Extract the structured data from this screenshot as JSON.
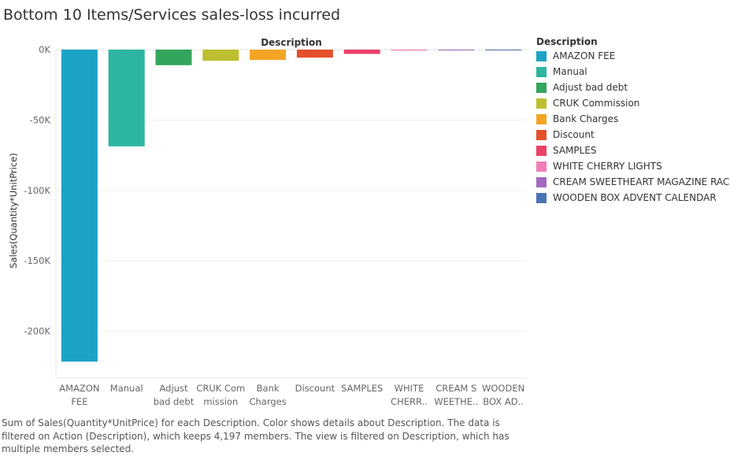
{
  "title": "Bottom 10 Items/Services sales-loss incurred",
  "caption": "Sum of Sales(Quantity*UnitPrice) for each Description.  Color shows details about Description. The data is filtered on Action (Description), which keeps 4,197 members. The view is filtered on Description, which has multiple members selected.",
  "legend": {
    "title": "Description",
    "items": [
      {
        "label": "AMAZON FEE",
        "color": "#1ba3c6"
      },
      {
        "label": "Manual",
        "color": "#2cb5a0"
      },
      {
        "label": "Adjust bad debt",
        "color": "#33a65c"
      },
      {
        "label": "CRUK Commission",
        "color": "#bdbf2e"
      },
      {
        "label": "Bank Charges",
        "color": "#f4a525"
      },
      {
        "label": "Discount",
        "color": "#e4502b"
      },
      {
        "label": "SAMPLES",
        "color": "#ec3f65"
      },
      {
        "label": "WHITE CHERRY LIGHTS",
        "color": "#f27eb9"
      },
      {
        "label": "CREAM SWEETHEART MAGAZINE RACK",
        "color": "#a569bd"
      },
      {
        "label": "WOODEN BOX ADVENT CALENDAR",
        "color": "#4a74b4"
      }
    ]
  },
  "chart_data": {
    "type": "bar",
    "title": "Bottom 10 Items/Services sales-loss incurred",
    "xlabel": "Description",
    "ylabel": "Sales(Quantity*UnitPrice)",
    "ylim": [
      -222000,
      0
    ],
    "yticks": [
      0,
      -50000,
      -100000,
      -150000,
      -200000
    ],
    "ytick_labels": [
      "0K",
      "-50K",
      "-100K",
      "-150K",
      "-200K"
    ],
    "grid": true,
    "legend_position": "right",
    "categories": [
      "AMAZON FEE",
      "Manual",
      "Adjust bad debt",
      "CRUK Commission",
      "Bank Charges",
      "Discount",
      "SAMPLES",
      "WHITE CHERRY LIGHTS",
      "CREAM SWEETHEART MAGAZINE RACK",
      "WOODEN BOX ADVENT CALENDAR"
    ],
    "category_tick_labels": [
      [
        "AMAZON",
        "FEE"
      ],
      [
        "Manual"
      ],
      [
        "Adjust",
        "bad debt"
      ],
      [
        "CRUK Com",
        "mission"
      ],
      [
        "Bank",
        "Charges"
      ],
      [
        "Discount"
      ],
      [
        "SAMPLES"
      ],
      [
        "WHITE",
        "CHERR.."
      ],
      [
        "CREAM S",
        "WEETHE.."
      ],
      [
        "WOODEN",
        "BOX AD.."
      ]
    ],
    "values": [
      -221520,
      -68671,
      -11062,
      -7933,
      -7340,
      -5696,
      -3040,
      -700,
      -600,
      -400
    ],
    "colors": [
      "#1ba3c6",
      "#2cb5a0",
      "#33a65c",
      "#bdbf2e",
      "#f4a525",
      "#e4502b",
      "#ec3f65",
      "#f27eb9",
      "#a569bd",
      "#4a74b4"
    ]
  }
}
